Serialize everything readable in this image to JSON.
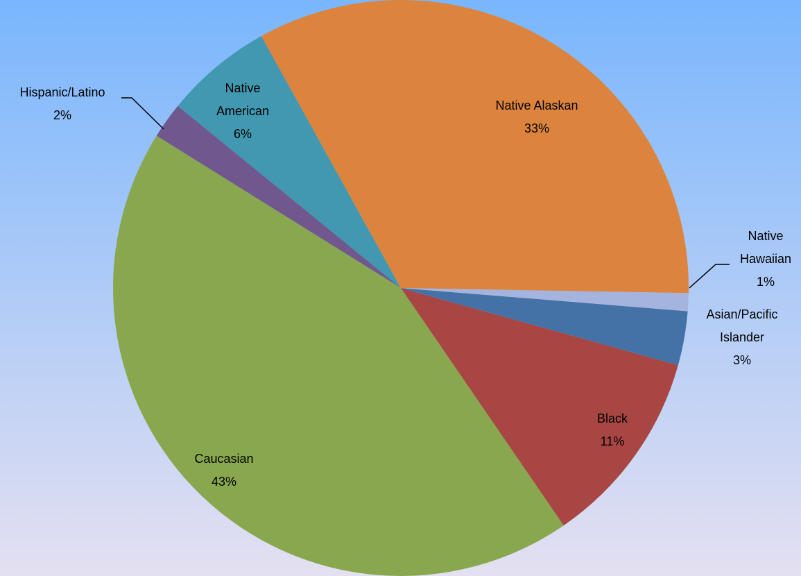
{
  "chart_data": {
    "type": "pie",
    "categories": [
      "Native Alaskan",
      "Native Hawaiian",
      "Asian/Pacific Islander",
      "Black",
      "Caucasian",
      "Hispanic/Latino",
      "Native American"
    ],
    "values": [
      33,
      1,
      3,
      11,
      43,
      2,
      6
    ],
    "value_labels": [
      "33%",
      "1%",
      "3%",
      "11%",
      "43%",
      "2%",
      "6%"
    ],
    "colors": [
      "#dc843e",
      "#a5b4de",
      "#4471a6",
      "#a84644",
      "#89a74f",
      "#70588e",
      "#4198b0"
    ]
  }
}
